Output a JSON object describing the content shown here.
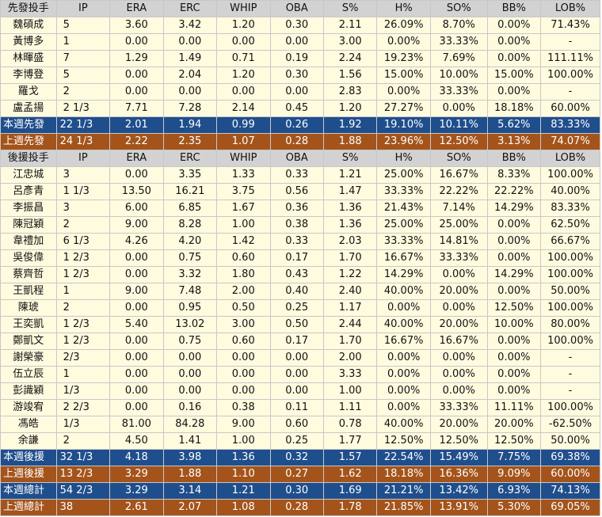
{
  "columns": [
    "IP",
    "ERA",
    "ERC",
    "WHIP",
    "OBA",
    "S%",
    "H%",
    "SO%",
    "BB%",
    "LOB%"
  ],
  "starters": {
    "header": "先發投手",
    "rows": [
      [
        "魏碩成",
        "5",
        "3.60",
        "3.42",
        "1.20",
        "0.30",
        "2.11",
        "26.09%",
        "8.70%",
        "0.00%",
        "71.43%"
      ],
      [
        "黃博多",
        "1",
        "0.00",
        "0.00",
        "0.00",
        "0.00",
        "3.00",
        "0.00%",
        "33.33%",
        "0.00%",
        "-"
      ],
      [
        "林暉盛",
        "7",
        "1.29",
        "1.49",
        "0.71",
        "0.19",
        "2.24",
        "19.23%",
        "7.69%",
        "0.00%",
        "111.11%"
      ],
      [
        "李博登",
        "5",
        "0.00",
        "2.04",
        "1.20",
        "0.30",
        "1.56",
        "15.00%",
        "10.00%",
        "15.00%",
        "100.00%"
      ],
      [
        "羅戈",
        "2",
        "0.00",
        "0.00",
        "0.00",
        "0.00",
        "2.83",
        "0.00%",
        "33.33%",
        "0.00%",
        "-"
      ],
      [
        "盧孟揚",
        "2 1/3",
        "7.71",
        "7.28",
        "2.14",
        "0.45",
        "1.20",
        "27.27%",
        "0.00%",
        "18.18%",
        "60.00%"
      ]
    ],
    "summaries": [
      {
        "style": "blue",
        "cells": [
          "本週先發",
          "22 1/3",
          "2.01",
          "1.94",
          "0.99",
          "0.26",
          "1.92",
          "19.10%",
          "10.11%",
          "5.62%",
          "83.33%"
        ]
      },
      {
        "style": "brown",
        "cells": [
          "上週先發",
          "24 1/3",
          "2.22",
          "2.35",
          "1.07",
          "0.28",
          "1.88",
          "23.96%",
          "12.50%",
          "3.13%",
          "74.07%"
        ]
      }
    ]
  },
  "relievers": {
    "header": "後援投手",
    "rows": [
      [
        "江忠城",
        "3",
        "0.00",
        "3.35",
        "1.33",
        "0.33",
        "1.21",
        "25.00%",
        "16.67%",
        "8.33%",
        "100.00%"
      ],
      [
        "呂彥青",
        "1 1/3",
        "13.50",
        "16.21",
        "3.75",
        "0.56",
        "1.47",
        "33.33%",
        "22.22%",
        "22.22%",
        "40.00%"
      ],
      [
        "李振昌",
        "3",
        "6.00",
        "6.85",
        "1.67",
        "0.36",
        "1.36",
        "21.43%",
        "7.14%",
        "14.29%",
        "83.33%"
      ],
      [
        "陳冠穎",
        "2",
        "9.00",
        "8.28",
        "1.00",
        "0.38",
        "1.36",
        "25.00%",
        "25.00%",
        "0.00%",
        "62.50%"
      ],
      [
        "韋禮加",
        "6 1/3",
        "4.26",
        "4.20",
        "1.42",
        "0.33",
        "2.03",
        "33.33%",
        "14.81%",
        "0.00%",
        "66.67%"
      ],
      [
        "吳俊偉",
        "1 2/3",
        "0.00",
        "0.75",
        "0.60",
        "0.17",
        "1.70",
        "16.67%",
        "33.33%",
        "0.00%",
        "100.00%"
      ],
      [
        "蔡齊哲",
        "1 2/3",
        "0.00",
        "3.32",
        "1.80",
        "0.43",
        "1.22",
        "14.29%",
        "0.00%",
        "14.29%",
        "100.00%"
      ],
      [
        "王凱程",
        "1",
        "9.00",
        "7.48",
        "2.00",
        "0.40",
        "2.40",
        "40.00%",
        "20.00%",
        "0.00%",
        "50.00%"
      ],
      [
        "陳琥",
        "2",
        "0.00",
        "0.95",
        "0.50",
        "0.25",
        "1.17",
        "0.00%",
        "0.00%",
        "12.50%",
        "100.00%"
      ],
      [
        "王奕凱",
        "1 2/3",
        "5.40",
        "13.02",
        "3.00",
        "0.50",
        "2.44",
        "40.00%",
        "20.00%",
        "10.00%",
        "80.00%"
      ],
      [
        "鄭凱文",
        "1 2/3",
        "0.00",
        "0.75",
        "0.60",
        "0.17",
        "1.70",
        "16.67%",
        "16.67%",
        "0.00%",
        "100.00%"
      ],
      [
        "謝榮豪",
        "2/3",
        "0.00",
        "0.00",
        "0.00",
        "0.00",
        "2.00",
        "0.00%",
        "0.00%",
        "0.00%",
        "-"
      ],
      [
        "伍立辰",
        "1",
        "0.00",
        "0.00",
        "0.00",
        "0.00",
        "3.33",
        "0.00%",
        "0.00%",
        "0.00%",
        "-"
      ],
      [
        "彭識穎",
        "1/3",
        "0.00",
        "0.00",
        "0.00",
        "0.00",
        "1.00",
        "0.00%",
        "0.00%",
        "0.00%",
        "-"
      ],
      [
        "游竣宥",
        "2 2/3",
        "0.00",
        "0.16",
        "0.38",
        "0.11",
        "1.11",
        "0.00%",
        "33.33%",
        "11.11%",
        "100.00%"
      ],
      [
        "馮皓",
        "1/3",
        "81.00",
        "84.28",
        "9.00",
        "0.60",
        "0.78",
        "40.00%",
        "20.00%",
        "20.00%",
        "-62.50%"
      ],
      [
        "余謙",
        "2",
        "4.50",
        "1.41",
        "1.00",
        "0.25",
        "1.77",
        "12.50%",
        "12.50%",
        "12.50%",
        "50.00%"
      ]
    ],
    "summaries": [
      {
        "style": "blue",
        "cells": [
          "本週後援",
          "32 1/3",
          "4.18",
          "3.98",
          "1.36",
          "0.32",
          "1.57",
          "22.54%",
          "15.49%",
          "7.75%",
          "69.38%"
        ]
      },
      {
        "style": "brown",
        "cells": [
          "上週後援",
          "13 2/3",
          "3.29",
          "1.88",
          "1.10",
          "0.27",
          "1.62",
          "18.18%",
          "16.36%",
          "9.09%",
          "60.00%"
        ]
      },
      {
        "style": "blue",
        "cells": [
          "本週總計",
          "54 2/3",
          "3.29",
          "3.14",
          "1.21",
          "0.30",
          "1.69",
          "21.21%",
          "13.42%",
          "6.93%",
          "74.13%"
        ]
      },
      {
        "style": "brown",
        "cells": [
          "上週總計",
          "38",
          "2.61",
          "2.07",
          "1.08",
          "0.28",
          "1.78",
          "21.85%",
          "13.91%",
          "5.30%",
          "69.05%"
        ]
      }
    ]
  },
  "colors": {
    "header_bg": "#d2d2d2",
    "row_bg": "#fffbdf",
    "this_week_bg": "#1f4e8c",
    "last_week_bg": "#a4541b",
    "summary_text": "#ffffff"
  }
}
